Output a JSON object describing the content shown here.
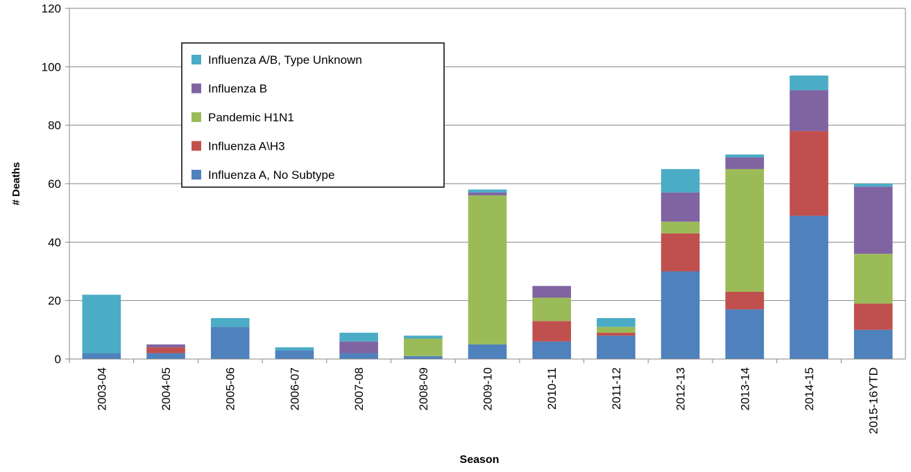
{
  "chart_data": {
    "type": "stacked_bar",
    "x_label": "Season",
    "y_label": "# Deaths",
    "categories": [
      "2003-04",
      "2004-05",
      "2005-06",
      "2006-07",
      "2007-08",
      "2008-09",
      "2009-10",
      "2010-11",
      "2011-12",
      "2012-13",
      "2013-14",
      "2014-15",
      "2015-16YTD"
    ],
    "series": [
      {
        "name": "Influenza A, No Subtype",
        "color": "#4f81bd",
        "values": [
          2,
          2,
          11,
          3,
          2,
          1,
          5,
          6,
          8,
          30,
          17,
          49,
          10
        ]
      },
      {
        "name": "Influenza A\\H3",
        "color": "#c0504d",
        "values": [
          0,
          2,
          0,
          0,
          0,
          0,
          0,
          7,
          1,
          13,
          6,
          29,
          9
        ]
      },
      {
        "name": "Pandemic H1N1",
        "color": "#9bbb59",
        "values": [
          0,
          0,
          0,
          0,
          0,
          6,
          51,
          8,
          2,
          4,
          42,
          0,
          17
        ]
      },
      {
        "name": "Influenza B",
        "color": "#8064a2",
        "values": [
          0,
          1,
          0,
          0,
          4,
          0,
          1,
          4,
          0,
          10,
          4,
          14,
          23
        ]
      },
      {
        "name": "Influenza A/B, Type Unknown",
        "color": "#4bacc6",
        "values": [
          20,
          0,
          3,
          1,
          3,
          1,
          1,
          0,
          3,
          8,
          1,
          5,
          1
        ]
      }
    ],
    "ylim": [
      0,
      120
    ],
    "yticks": [
      0,
      20,
      40,
      60,
      80,
      100,
      120
    ],
    "grid": true
  }
}
